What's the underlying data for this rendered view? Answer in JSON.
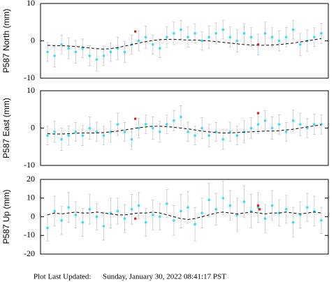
{
  "chart_data": [
    {
      "type": "scatter",
      "ylabel": "P587 North (mm)",
      "xlim": [
        -1,
        40
      ],
      "ylim": [
        -10,
        10
      ],
      "yticks": [
        -10,
        0,
        10
      ],
      "x": [
        0,
        1,
        2,
        3,
        4,
        5,
        6,
        7,
        8,
        9,
        10,
        11,
        12,
        13,
        14,
        15,
        16,
        17,
        18,
        19,
        20,
        21,
        22,
        23,
        24,
        25,
        26,
        27,
        28,
        29,
        30,
        31,
        32,
        33,
        34,
        35,
        36,
        37,
        38,
        39
      ],
      "series": [
        {
          "color": "#33e0f0",
          "values": [
            -3,
            -4,
            -1,
            -2,
            -3,
            -2,
            -4,
            -5,
            -4,
            -3,
            -2,
            -3,
            -1,
            0,
            1,
            -1,
            -2,
            1,
            2,
            3,
            1,
            2,
            0,
            1,
            2,
            3,
            1,
            0,
            2,
            1,
            -1,
            2,
            1,
            0,
            1,
            3,
            -1,
            0,
            1,
            2
          ],
          "errors": [
            2.5,
            3,
            2.5,
            2.8,
            3,
            2.5,
            2.7,
            3,
            2.6,
            2.5,
            3,
            2.8,
            2.5,
            2.7,
            3,
            2.6,
            2.5,
            2.8,
            3,
            2.5,
            2.7,
            2.6,
            2.5,
            3,
            2.8,
            2.5,
            2.7,
            3,
            2.6,
            2.5,
            2.8,
            3,
            2.5,
            2.7,
            2.6,
            2.5,
            3,
            2.8,
            2.5,
            2.7
          ]
        },
        {
          "color": "#000000",
          "style": "dashed",
          "values": [
            -1.2,
            -1.3,
            -1.3,
            -1.4,
            -1.5,
            -1.7,
            -1.9,
            -2.1,
            -2.2,
            -2.1,
            -1.8,
            -1.4,
            -1,
            -0.6,
            -0.2,
            0.1,
            0.3,
            0.4,
            0.4,
            0.3,
            0.2,
            0.2,
            0.1,
            0,
            -0.2,
            -0.4,
            -0.6,
            -0.8,
            -1,
            -1.1,
            -1.2,
            -1.2,
            -1.1,
            -1,
            -0.8,
            -0.6,
            -0.3,
            0,
            0.3,
            0.6
          ]
        },
        {
          "color": "#e02020",
          "x": [
            12.5,
            30
          ],
          "values": [
            2.5,
            -1
          ]
        }
      ]
    },
    {
      "type": "scatter",
      "ylabel": "P587 East (mm)",
      "xlim": [
        -1,
        40
      ],
      "ylim": [
        -10,
        10
      ],
      "yticks": [
        -10,
        0,
        10
      ],
      "x": [
        0,
        1,
        2,
        3,
        4,
        5,
        6,
        7,
        8,
        9,
        10,
        11,
        12,
        13,
        14,
        15,
        16,
        17,
        18,
        19,
        20,
        21,
        22,
        23,
        24,
        25,
        26,
        27,
        28,
        29,
        30,
        31,
        32,
        33,
        34,
        35,
        36,
        37,
        38,
        39
      ],
      "series": [
        {
          "color": "#33e0f0",
          "values": [
            -2,
            -1,
            -3,
            -2,
            -1,
            -2,
            0,
            -1,
            -2,
            -1,
            1,
            -1,
            -3,
            0,
            1,
            0,
            -1,
            1,
            2,
            3,
            -1,
            -2,
            0,
            -2,
            -1,
            -3,
            -1,
            -2,
            -1,
            0,
            1,
            2,
            0,
            1,
            -1,
            2,
            1,
            0,
            1,
            1
          ],
          "errors": [
            2.5,
            2.8,
            3,
            2.6,
            2.5,
            2.7,
            3,
            2.6,
            2.5,
            2.8,
            3,
            2.5,
            2.7,
            2.6,
            2.5,
            3,
            2.8,
            2.5,
            2.7,
            3,
            2.6,
            2.5,
            2.8,
            3,
            2.5,
            2.7,
            2.6,
            2.5,
            3,
            2.8,
            2.5,
            2.7,
            3,
            2.6,
            2.5,
            2.8,
            3,
            2.5,
            2.7,
            2.6
          ]
        },
        {
          "color": "#000000",
          "style": "dashed",
          "values": [
            -1.5,
            -1.6,
            -1.6,
            -1.5,
            -1.4,
            -1.3,
            -1.3,
            -1.3,
            -1.2,
            -1,
            -0.8,
            -0.5,
            -0.2,
            0.1,
            0.3,
            0.5,
            0.5,
            0.4,
            0.2,
            0,
            -0.2,
            -0.5,
            -0.8,
            -1,
            -1.2,
            -1.3,
            -1.3,
            -1.2,
            -1.1,
            -1,
            -0.9,
            -0.8,
            -0.8,
            -0.7,
            -0.5,
            -0.3,
            0,
            0.3,
            0.6,
            0.9
          ]
        },
        {
          "color": "#e02020",
          "x": [
            12.5,
            30
          ],
          "values": [
            2.5,
            4
          ]
        }
      ]
    },
    {
      "type": "scatter",
      "ylabel": "P587 Up (mm)",
      "xlim": [
        -1,
        40
      ],
      "ylim": [
        -20,
        20
      ],
      "yticks": [
        -20,
        -10,
        0,
        10,
        20
      ],
      "x": [
        0,
        1,
        2,
        3,
        4,
        5,
        6,
        7,
        8,
        9,
        10,
        11,
        12,
        13,
        14,
        15,
        16,
        17,
        18,
        19,
        20,
        21,
        22,
        23,
        24,
        25,
        26,
        27,
        28,
        29,
        30,
        31,
        32,
        33,
        34,
        35,
        36,
        37,
        38,
        39
      ],
      "series": [
        {
          "color": "#33e0f0",
          "values": [
            -6,
            3,
            -2,
            5,
            1,
            -3,
            4,
            0,
            -5,
            2,
            3,
            -1,
            4,
            6,
            -3,
            1,
            0,
            7,
            -2,
            3,
            5,
            -4,
            2,
            9,
            4,
            10,
            6,
            1,
            8,
            3,
            5,
            -1,
            6,
            2,
            4,
            -3,
            1,
            5,
            3,
            -2
          ],
          "errors": [
            7,
            8,
            7.5,
            8,
            7,
            7.5,
            8,
            7,
            7.5,
            8,
            7,
            7.5,
            8,
            7,
            7.5,
            8,
            7,
            7.5,
            8,
            9,
            8.5,
            9,
            8,
            9,
            8.5,
            9,
            8,
            9,
            8.5,
            9,
            8,
            7.5,
            8,
            7,
            7.5,
            8,
            7,
            7.5,
            8,
            7
          ]
        },
        {
          "color": "#000000",
          "style": "dashed",
          "values": [
            1,
            2,
            1.5,
            2,
            2.5,
            2,
            2,
            2.5,
            2,
            1.5,
            1,
            1,
            1.5,
            2,
            2,
            2.5,
            2,
            1,
            0,
            -1,
            -1.5,
            -1,
            0,
            1,
            2,
            2.5,
            2,
            1.5,
            2,
            2.5,
            2,
            1.5,
            2,
            2,
            2.5,
            2,
            1.5,
            2,
            2.5,
            2
          ]
        },
        {
          "color": "#e02020",
          "x": [
            12.5,
            30,
            30.2
          ],
          "values": [
            -1,
            6,
            4
          ]
        }
      ]
    }
  ],
  "footer": {
    "label": "Plot Last Updated:",
    "timestamp": "Sunday, January 30, 2022 08:41:17 PST"
  }
}
